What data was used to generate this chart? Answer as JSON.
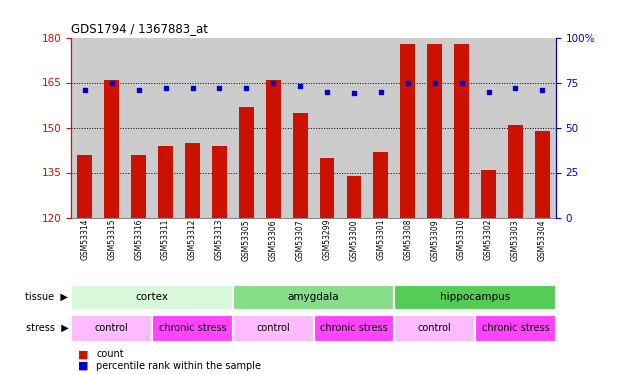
{
  "title": "GDS1794 / 1367883_at",
  "samples": [
    "GSM53314",
    "GSM53315",
    "GSM53316",
    "GSM53311",
    "GSM53312",
    "GSM53313",
    "GSM53305",
    "GSM53306",
    "GSM53307",
    "GSM53299",
    "GSM53300",
    "GSM53301",
    "GSM53308",
    "GSM53309",
    "GSM53310",
    "GSM53302",
    "GSM53303",
    "GSM53304"
  ],
  "counts": [
    141,
    166,
    141,
    144,
    145,
    144,
    157,
    166,
    155,
    140,
    134,
    142,
    178,
    178,
    178,
    136,
    151,
    149
  ],
  "percentiles": [
    71,
    75,
    71,
    72,
    72,
    72,
    72,
    75,
    73,
    70,
    69,
    70,
    75,
    75,
    75,
    70,
    72,
    71
  ],
  "ylim_left": [
    120,
    180
  ],
  "ylim_right": [
    0,
    100
  ],
  "yticks_left": [
    120,
    135,
    150,
    165,
    180
  ],
  "yticks_right": [
    0,
    25,
    50,
    75,
    100
  ],
  "tissue_groups": [
    {
      "label": "cortex",
      "start": 0,
      "end": 6,
      "color": "#d9f7d9"
    },
    {
      "label": "amygdala",
      "start": 6,
      "end": 12,
      "color": "#88dd88"
    },
    {
      "label": "hippocampus",
      "start": 12,
      "end": 18,
      "color": "#55cc55"
    }
  ],
  "stress_groups": [
    {
      "label": "control",
      "start": 0,
      "end": 3,
      "color": "#ffbbff"
    },
    {
      "label": "chronic stress",
      "start": 3,
      "end": 6,
      "color": "#ff44ff"
    },
    {
      "label": "control",
      "start": 6,
      "end": 9,
      "color": "#ffbbff"
    },
    {
      "label": "chronic stress",
      "start": 9,
      "end": 12,
      "color": "#ff44ff"
    },
    {
      "label": "control",
      "start": 12,
      "end": 15,
      "color": "#ffbbff"
    },
    {
      "label": "chronic stress",
      "start": 15,
      "end": 18,
      "color": "#ff44ff"
    }
  ],
  "bar_color": "#cc1100",
  "dot_color": "#0000cc",
  "bg_color": "#cccccc",
  "plot_bg": "#cccccc",
  "left_axis_color": "#cc1100",
  "right_axis_color": "#0000cc",
  "n_samples": 18
}
